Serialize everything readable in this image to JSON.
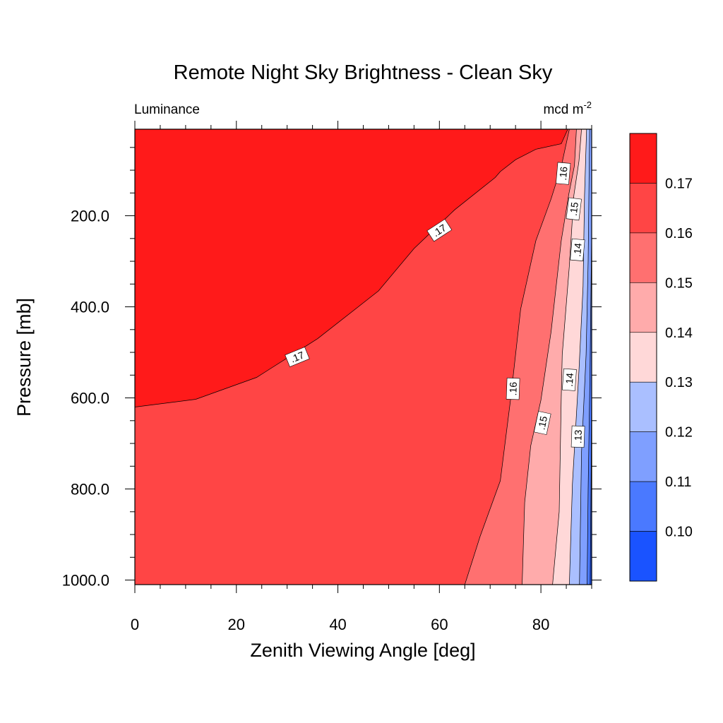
{
  "chart_data": {
    "type": "heatmap",
    "subtype": "filled-contour",
    "title": "Remote Night Sky Brightness - Clean Sky",
    "left_string": "Luminance",
    "right_string": {
      "base": "mcd m",
      "superscript": "-2"
    },
    "xlabel": "Zenith Viewing Angle [deg]",
    "ylabel": "Pressure [mb]",
    "x_ticks": [
      "0",
      "20",
      "40",
      "60",
      "80"
    ],
    "x_tick_values": [
      0,
      20,
      40,
      60,
      80
    ],
    "xlim": [
      0,
      90
    ],
    "y_ticks": [
      "200.0",
      "400.0",
      "600.0",
      "800.0",
      "1000.0"
    ],
    "y_tick_values": [
      200,
      400,
      600,
      800,
      1000
    ],
    "ylim": [
      1010,
      10
    ],
    "y_reversed": true,
    "grid": false,
    "legend": "right colorbar",
    "contour_levels": [
      0.1,
      0.11,
      0.12,
      0.13,
      0.14,
      0.15,
      0.16,
      0.17
    ],
    "colorbar": {
      "labels": [
        "0.17",
        "0.16",
        "0.15",
        "0.14",
        "0.13",
        "0.12",
        "0.11",
        "0.10"
      ],
      "colors": [
        "#ff1a1a",
        "#ff4545",
        "#ff7070",
        "#ffabab",
        "#ffd8d8",
        "#aabfff",
        "#7f9fff",
        "#4a79ff",
        "#1a53ff"
      ]
    },
    "contour_lines": [
      {
        "level": 0.17,
        "points": [
          [
            0,
            620
          ],
          [
            12,
            603
          ],
          [
            24,
            555
          ],
          [
            36,
            470
          ],
          [
            48,
            365
          ],
          [
            55,
            272
          ],
          [
            63,
            187
          ],
          [
            71,
            116
          ],
          [
            72,
            103
          ],
          [
            75,
            77
          ],
          [
            79,
            54
          ],
          [
            84,
            42
          ],
          [
            85.3,
            10
          ]
        ]
      },
      {
        "level": 0.16,
        "points": [
          [
            65,
            1010
          ],
          [
            68,
            905
          ],
          [
            72,
            782
          ],
          [
            74,
            605
          ],
          [
            76,
            405
          ],
          [
            79,
            255
          ],
          [
            82,
            163
          ],
          [
            84,
            92
          ],
          [
            85.6,
            10
          ]
        ]
      },
      {
        "level": 0.15,
        "points": [
          [
            76.3,
            1010
          ],
          [
            76.8,
            830
          ],
          [
            78,
            705
          ],
          [
            80,
            605
          ],
          [
            82,
            455
          ],
          [
            84,
            255
          ],
          [
            85.5,
            153
          ],
          [
            86.6,
            90
          ],
          [
            87,
            10
          ]
        ]
      },
      {
        "level": 0.14,
        "points": [
          [
            82.3,
            1010
          ],
          [
            83.6,
            850
          ],
          [
            84,
            600
          ],
          [
            84.2,
            505
          ],
          [
            85.6,
            310
          ],
          [
            86.5,
            155
          ],
          [
            87.5,
            80
          ],
          [
            88,
            10
          ]
        ]
      },
      {
        "level": 0.13,
        "points": [
          [
            85.6,
            1010
          ],
          [
            86.2,
            790
          ],
          [
            87.5,
            540
          ],
          [
            88.3,
            355
          ],
          [
            88.6,
            155
          ],
          [
            89,
            10
          ]
        ]
      },
      {
        "level": 0.12,
        "points": [
          [
            87.6,
            1010
          ],
          [
            88,
            720
          ],
          [
            88.9,
            505
          ],
          [
            89.3,
            300
          ],
          [
            89.6,
            10
          ]
        ]
      },
      {
        "level": 0.11,
        "points": [
          [
            89.1,
            1010
          ],
          [
            89.3,
            800
          ],
          [
            89.65,
            555
          ],
          [
            90,
            240
          ]
        ]
      },
      {
        "level": 0.1,
        "points": [
          [
            89.7,
            1010
          ],
          [
            89.9,
            760
          ],
          [
            90,
            560
          ]
        ]
      }
    ],
    "labels_on_lines": [
      {
        "text": ".17",
        "x": 60,
        "y": 232,
        "angle": -33
      },
      {
        "text": ".17",
        "x": 32,
        "y": 510,
        "angle": -22
      },
      {
        "text": ".16",
        "x": 84.4,
        "y": 107,
        "angle": -85
      },
      {
        "text": ".16",
        "x": 74.5,
        "y": 580,
        "angle": -88
      },
      {
        "text": ".15",
        "x": 86.5,
        "y": 185,
        "angle": -83
      },
      {
        "text": ".15",
        "x": 80.3,
        "y": 655,
        "angle": -78
      },
      {
        "text": ".14",
        "x": 87.2,
        "y": 275,
        "angle": -85
      },
      {
        "text": ".14",
        "x": 85.6,
        "y": 560,
        "angle": -86
      },
      {
        "text": ".13",
        "x": 87.3,
        "y": 685,
        "angle": -88
      }
    ]
  }
}
